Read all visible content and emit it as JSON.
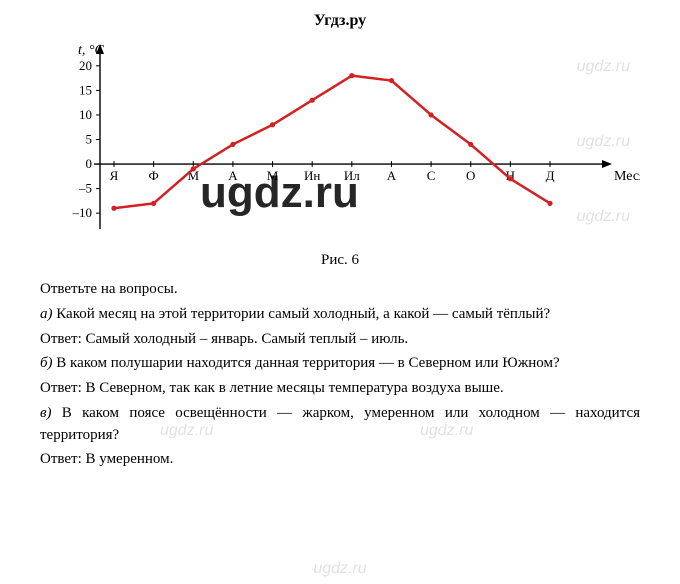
{
  "header": {
    "site": "Угдз.ру"
  },
  "chart": {
    "type": "line",
    "y_axis_label": "t, °C",
    "x_axis_label": "Месяц",
    "ylim": [
      -12,
      22
    ],
    "ytick_values": [
      -10,
      -5,
      0,
      5,
      10,
      15,
      20
    ],
    "ytick_labels": [
      "–10",
      "–5",
      "0",
      "5",
      "10",
      "15",
      "20"
    ],
    "months": [
      "Я",
      "Ф",
      "М",
      "А",
      "М",
      "Ин",
      "Ил",
      "А",
      "С",
      "О",
      "Н",
      "Д"
    ],
    "values": [
      -9,
      -8,
      -1,
      4,
      8,
      13,
      18,
      17,
      10,
      4,
      -3,
      -8
    ],
    "line_color": "#d32020",
    "line_width": 2.5,
    "marker_radius": 2.6,
    "axis_color": "#000000",
    "axis_width": 1.4,
    "background_color": "#ffffff",
    "axis_font_size": 14,
    "tick_font_size": 13,
    "label_font_family": "Georgia, 'Times New Roman', serif"
  },
  "figure_caption": "Рис. 6",
  "text": {
    "intro": "Ответьте на вопросы.",
    "a_letter": "а)",
    "a_q": " Какой месяц на этой территории самый холодный, а какой — самый тёплый?",
    "a_ans": "Ответ: Самый холодный – январь. Самый теплый – июль.",
    "b_letter": "б)",
    "b_q": " В каком полушарии находится данная территория — в Северном или Южном?",
    "b_ans": "Ответ: В Северном, так как в летние месяцы температура воздуха выше.",
    "c_letter": "в)",
    "c_q": " В каком поясе освещённости — жарком, умеренном или холодном — находится территория?",
    "c_ans": "Ответ: В умеренном."
  },
  "watermarks": {
    "small": "ugdz.ru",
    "big": "ugdz.ru",
    "footer": "ugdz.ru"
  }
}
